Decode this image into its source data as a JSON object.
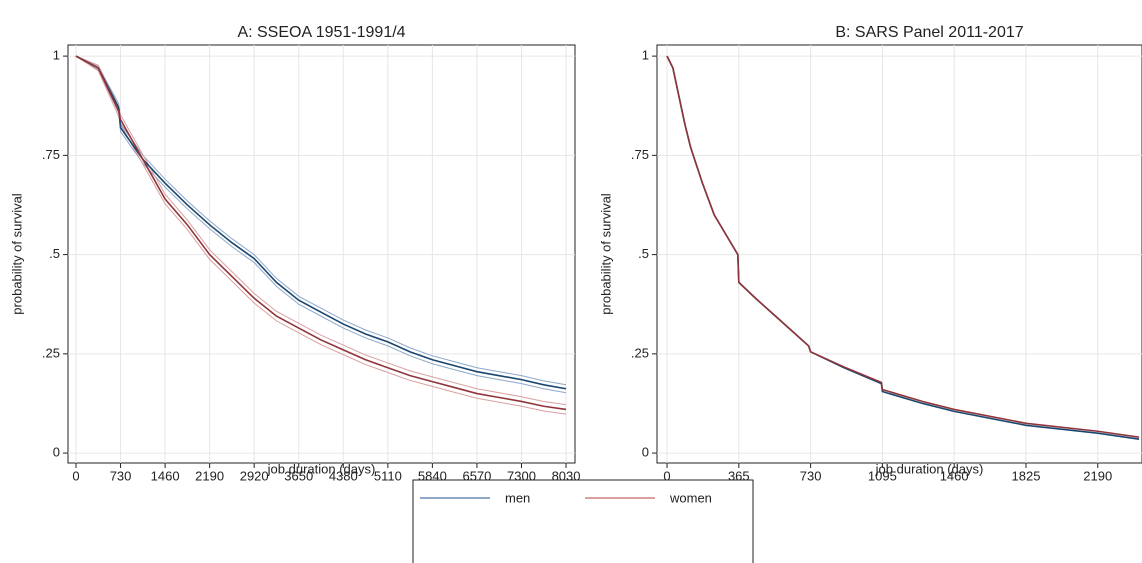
{
  "chart_data": [
    {
      "type": "line",
      "title": "A: SSEOA 1951-1991/4",
      "xlabel": "job duration (days)",
      "ylabel": "probability of survival",
      "x": [
        0,
        365,
        700,
        730,
        1095,
        1460,
        1825,
        2190,
        2555,
        2920,
        3285,
        3650,
        4015,
        4380,
        4745,
        5110,
        5475,
        5840,
        6205,
        6570,
        6935,
        7300,
        7665,
        8030
      ],
      "series": [
        {
          "name": "men",
          "color": "#1a476f",
          "ci_color": "#8fa8c8",
          "values": [
            1,
            0.97,
            0.87,
            0.82,
            0.74,
            0.68,
            0.625,
            0.575,
            0.53,
            0.49,
            0.43,
            0.385,
            0.355,
            0.325,
            0.3,
            0.28,
            0.255,
            0.235,
            0.22,
            0.205,
            0.195,
            0.185,
            0.172,
            0.162
          ],
          "lower": [
            1,
            0.965,
            0.86,
            0.81,
            0.73,
            0.67,
            0.615,
            0.565,
            0.52,
            0.48,
            0.42,
            0.375,
            0.345,
            0.315,
            0.29,
            0.27,
            0.245,
            0.225,
            0.21,
            0.195,
            0.185,
            0.175,
            0.162,
            0.152
          ],
          "upper": [
            1,
            0.975,
            0.88,
            0.83,
            0.75,
            0.69,
            0.635,
            0.585,
            0.54,
            0.5,
            0.44,
            0.395,
            0.365,
            0.335,
            0.31,
            0.29,
            0.265,
            0.245,
            0.23,
            0.215,
            0.205,
            0.195,
            0.182,
            0.172
          ]
        },
        {
          "name": "women",
          "color": "#90353b",
          "ci_color": "#d9a0a0",
          "values": [
            1,
            0.97,
            0.86,
            0.84,
            0.74,
            0.64,
            0.575,
            0.5,
            0.445,
            0.39,
            0.345,
            0.315,
            0.285,
            0.26,
            0.235,
            0.215,
            0.195,
            0.18,
            0.165,
            0.15,
            0.14,
            0.13,
            0.118,
            0.11
          ],
          "lower": [
            1,
            0.963,
            0.848,
            0.828,
            0.728,
            0.628,
            0.563,
            0.488,
            0.433,
            0.378,
            0.333,
            0.303,
            0.273,
            0.248,
            0.223,
            0.203,
            0.183,
            0.168,
            0.153,
            0.138,
            0.128,
            0.118,
            0.106,
            0.098
          ],
          "upper": [
            1,
            0.977,
            0.872,
            0.852,
            0.752,
            0.652,
            0.587,
            0.512,
            0.457,
            0.402,
            0.357,
            0.327,
            0.297,
            0.272,
            0.247,
            0.227,
            0.207,
            0.192,
            0.177,
            0.162,
            0.152,
            0.142,
            0.13,
            0.122
          ]
        }
      ],
      "xlim": [
        -131,
        8177
      ],
      "ylim": [
        -0.025,
        1.028
      ],
      "xticks": [
        0,
        730,
        1460,
        2190,
        2920,
        3650,
        4380,
        5110,
        5840,
        6570,
        7300,
        8030
      ],
      "yticks": [
        0,
        {
          "value": 0.25,
          "label": ".25"
        },
        {
          "value": 0.5,
          "label": ".5"
        },
        {
          "value": 0.75,
          "label": ".75"
        },
        1
      ],
      "grid": true
    },
    {
      "type": "line",
      "title": "B: SARS Panel 2011-2017",
      "xlabel": "job duration (days)",
      "ylabel": "probability of survival",
      "x": [
        0,
        30,
        60,
        90,
        120,
        180,
        240,
        300,
        360,
        365,
        450,
        540,
        630,
        720,
        730,
        900,
        1090,
        1095,
        1300,
        1460,
        1825,
        2190,
        2400
      ],
      "series": [
        {
          "name": "men",
          "color": "#1a476f",
          "values": [
            1,
            0.97,
            0.9,
            0.83,
            0.77,
            0.68,
            0.6,
            0.55,
            0.5,
            0.43,
            0.39,
            0.35,
            0.31,
            0.27,
            0.255,
            0.215,
            0.175,
            0.155,
            0.125,
            0.105,
            0.07,
            0.05,
            0.035
          ]
        },
        {
          "name": "women",
          "color": "#90353b",
          "values": [
            1,
            0.97,
            0.9,
            0.83,
            0.77,
            0.68,
            0.6,
            0.55,
            0.5,
            0.43,
            0.39,
            0.35,
            0.31,
            0.27,
            0.255,
            0.217,
            0.178,
            0.16,
            0.13,
            0.11,
            0.075,
            0.055,
            0.04
          ]
        }
      ],
      "xlim": [
        -51,
        2415
      ],
      "ylim": [
        -0.025,
        1.028
      ],
      "xticks": [
        0,
        365,
        730,
        1095,
        1460,
        1825,
        2190
      ],
      "yticks": [
        0,
        {
          "value": 0.25,
          "label": ".25"
        },
        {
          "value": 0.5,
          "label": ".5"
        },
        {
          "value": 0.75,
          "label": ".75"
        },
        1
      ],
      "grid": true
    }
  ]
}
